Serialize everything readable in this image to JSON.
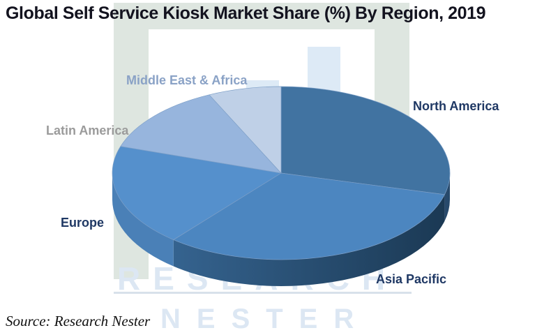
{
  "title": "Global Self Service Kiosk Market Share (%) By Region, 2019",
  "source": "Source: Research Nester",
  "watermark": {
    "line1": "RESEARCH",
    "line2": "NESTER"
  },
  "chart_data": {
    "type": "pie",
    "style": "3d-pie",
    "title": "Global Self Service Kiosk Market Share (%) By Region, 2019",
    "unit": "%",
    "direction": "clockwise",
    "start_angle_deg": 0,
    "values_estimated_from_angles": true,
    "legend": "direct slice labels, no legend box",
    "categories": [
      "North America",
      "Asia Pacific",
      "Europe",
      "Latin America",
      "Middle East & Africa"
    ],
    "values": [
      29,
      32,
      19,
      13,
      7
    ],
    "slices": [
      {
        "label": "North America",
        "value": 29,
        "color": "#4173a1",
        "side_color": "#27496b",
        "label_color": "#1f3864"
      },
      {
        "label": "Asia Pacific",
        "value": 32,
        "color": "#4c86c0",
        "side_gradient": [
          "#35638f",
          "#1b3954"
        ],
        "side_color": "#1f3e5c",
        "label_color": "#1f3864"
      },
      {
        "label": "Europe",
        "value": 19,
        "color": "#5590cc",
        "side_color": "#4a80b7",
        "label_color": "#1f3864"
      },
      {
        "label": "Latin America",
        "value": 13,
        "color": "#97b5dd",
        "side_color": "#97b5dd",
        "label_color": "#9b9b9b"
      },
      {
        "label": "Middle East & Africa",
        "value": 7,
        "color": "#bfd0e7",
        "side_color": "#bfd0e7",
        "label_color": "#8aa2c6"
      }
    ],
    "slice_border_color": "#7d9fc7",
    "background_color": "#ffffff"
  }
}
